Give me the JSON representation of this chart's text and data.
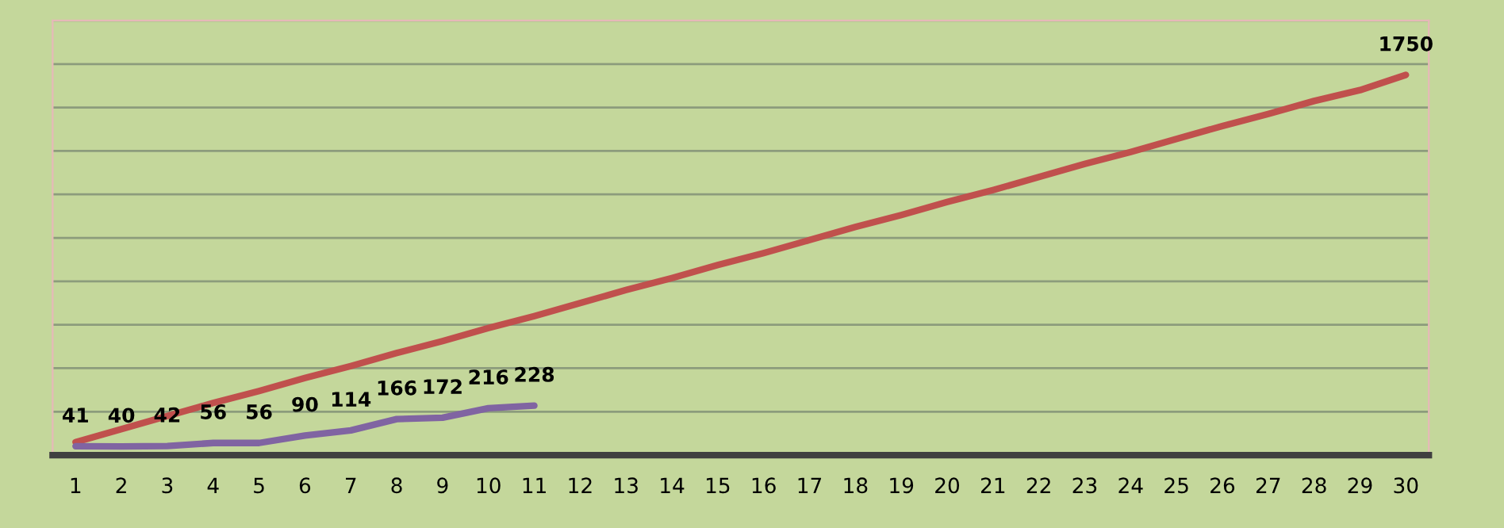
{
  "chart_data": {
    "type": "line",
    "categories": [
      "1",
      "2",
      "3",
      "4",
      "5",
      "6",
      "7",
      "8",
      "9",
      "10",
      "11",
      "12",
      "13",
      "14",
      "15",
      "16",
      "17",
      "18",
      "19",
      "20",
      "21",
      "22",
      "23",
      "24",
      "25",
      "26",
      "27",
      "28",
      "29",
      "30"
    ],
    "series": [
      {
        "color": "#c0504d",
        "values": [
          60,
          120,
          180,
          240,
          295,
          355,
          410,
          470,
          525,
          585,
          640,
          700,
          760,
          815,
          875,
          930,
          990,
          1050,
          1105,
          1165,
          1220,
          1280,
          1340,
          1395,
          1455,
          1515,
          1570,
          1630,
          1680,
          1750
        ],
        "value_labels": [
          null,
          null,
          null,
          null,
          null,
          null,
          null,
          null,
          null,
          null,
          null,
          null,
          null,
          null,
          null,
          null,
          null,
          null,
          null,
          null,
          null,
          null,
          null,
          null,
          null,
          null,
          null,
          null,
          null,
          "1750"
        ]
      },
      {
        "color": "#8064a2",
        "values": [
          41,
          40,
          42,
          56,
          56,
          90,
          114,
          166,
          172,
          216,
          228,
          null,
          null,
          null,
          null,
          null,
          null,
          null,
          null,
          null,
          null,
          null,
          null,
          null,
          null,
          null,
          null,
          null,
          null,
          null
        ],
        "value_labels": [
          "41",
          "40",
          "42",
          "56",
          "56",
          "90",
          "114",
          "166",
          "172",
          "216",
          "228",
          null,
          null,
          null,
          null,
          null,
          null,
          null,
          null,
          null,
          null,
          null,
          null,
          null,
          null,
          null,
          null,
          null,
          null,
          null
        ]
      }
    ],
    "ylim": [
      0,
      2000
    ],
    "yticks": [
      {
        "value": 0,
        "label": null
      },
      {
        "value": 200,
        "label": null
      },
      {
        "value": 400,
        "label": null
      },
      {
        "value": 600,
        "label": null
      },
      {
        "value": 800,
        "label": null
      },
      {
        "value": 1000,
        "label": null
      },
      {
        "value": 1200,
        "label": null
      },
      {
        "value": 1400,
        "label": null
      },
      {
        "value": 1600,
        "label": null
      },
      {
        "value": 1800,
        "label": null
      },
      {
        "value": 2000,
        "label": null
      }
    ],
    "tick_labels": "x",
    "grid": "y",
    "marker": "none",
    "line_style": "solid"
  }
}
